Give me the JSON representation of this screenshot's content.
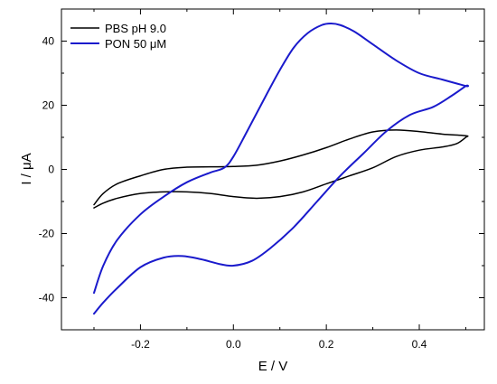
{
  "chart_data": {
    "type": "line",
    "title": "",
    "xlabel": "E / V",
    "ylabel": "I / μA",
    "xlim": [
      -0.37,
      0.54
    ],
    "ylim": [
      -50,
      50
    ],
    "xticks": [
      -0.2,
      0.0,
      0.2,
      0.4
    ],
    "xtick_labels": [
      "-0.2",
      "0.0",
      "0.2",
      "0.4"
    ],
    "yticks": [
      -40,
      -20,
      0,
      20,
      40
    ],
    "ytick_labels": [
      "-40",
      "-20",
      "0",
      "20",
      "40"
    ],
    "grid": false,
    "legend_position": "top-left",
    "series": [
      {
        "name": "PBS pH 9.0",
        "color": "#000000",
        "x": [
          -0.3,
          -0.28,
          -0.25,
          -0.2,
          -0.15,
          -0.1,
          -0.05,
          0.0,
          0.05,
          0.1,
          0.15,
          0.2,
          0.25,
          0.3,
          0.35,
          0.4,
          0.45,
          0.5,
          0.5,
          0.48,
          0.45,
          0.4,
          0.35,
          0.3,
          0.25,
          0.2,
          0.15,
          0.1,
          0.05,
          0.0,
          -0.05,
          -0.1,
          -0.15,
          -0.2,
          -0.25,
          -0.28,
          -0.3
        ],
        "y": [
          -11.0,
          -7.5,
          -4.5,
          -2.0,
          0.0,
          0.7,
          0.8,
          0.9,
          1.3,
          2.6,
          4.5,
          6.8,
          9.5,
          11.7,
          12.3,
          11.8,
          11.0,
          10.5,
          10.0,
          8.0,
          7.0,
          6.0,
          4.0,
          0.5,
          -2.0,
          -4.5,
          -7.0,
          -8.5,
          -9.0,
          -8.5,
          -7.5,
          -7.0,
          -7.0,
          -7.5,
          -9.0,
          -10.5,
          -12.0
        ]
      },
      {
        "name": "PON 50 μM",
        "color": "#1a1acc",
        "x": [
          -0.3,
          -0.28,
          -0.25,
          -0.2,
          -0.15,
          -0.1,
          -0.05,
          -0.02,
          0.0,
          0.03,
          0.07,
          0.1,
          0.13,
          0.16,
          0.19,
          0.21,
          0.23,
          0.26,
          0.3,
          0.35,
          0.4,
          0.45,
          0.5,
          0.5,
          0.47,
          0.43,
          0.38,
          0.33,
          0.28,
          0.23,
          0.18,
          0.13,
          0.08,
          0.04,
          0.0,
          -0.03,
          -0.07,
          -0.11,
          -0.15,
          -0.2,
          -0.25,
          -0.28,
          -0.3
        ],
        "y": [
          -38.5,
          -30.0,
          -22.0,
          -14.0,
          -8.5,
          -4.0,
          -1.0,
          0.5,
          4.0,
          12.0,
          23.0,
          31.0,
          38.0,
          42.5,
          45.0,
          45.5,
          45.0,
          43.0,
          39.0,
          34.0,
          30.0,
          28.0,
          26.0,
          26.0,
          23.0,
          19.5,
          17.0,
          12.0,
          5.0,
          -2.0,
          -10.0,
          -18.0,
          -24.5,
          -28.5,
          -30.0,
          -29.5,
          -28.0,
          -27.0,
          -27.5,
          -30.5,
          -37.0,
          -41.5,
          -45.0
        ]
      }
    ]
  }
}
